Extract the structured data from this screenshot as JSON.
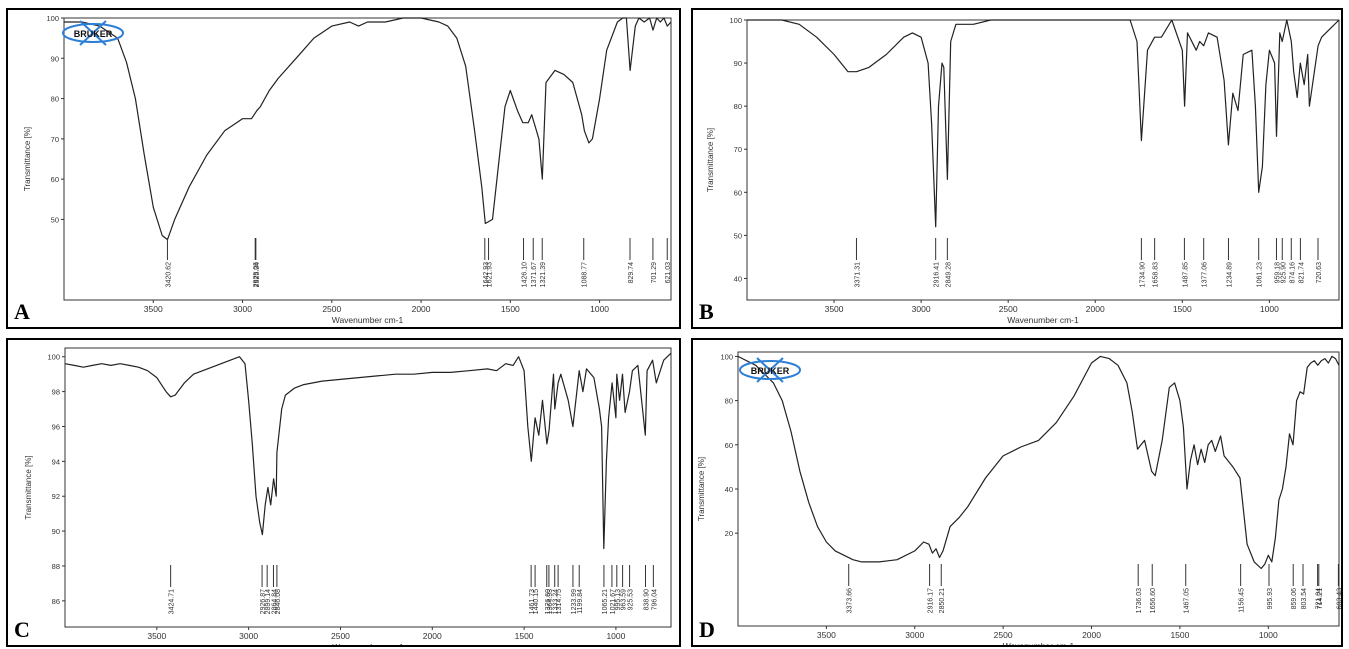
{
  "panels": [
    {
      "letter": "A",
      "logo_text": "BRUKER",
      "chart_data": {
        "type": "line",
        "xlabel": "Wavenumber cm-1",
        "ylabel": "Transmittance [%]",
        "xlim": [
          4000,
          600
        ],
        "ylim": [
          30,
          100
        ],
        "x_ticks": [
          3500,
          3000,
          2500,
          2000,
          1500,
          1000
        ],
        "y_ticks": [
          50,
          60,
          70,
          80,
          90,
          100
        ],
        "x": [
          4000,
          3900,
          3800,
          3700,
          3650,
          3600,
          3550,
          3500,
          3450,
          3420,
          3380,
          3300,
          3200,
          3100,
          3000,
          2950,
          2920,
          2900,
          2850,
          2800,
          2700,
          2600,
          2500,
          2400,
          2350,
          2300,
          2200,
          2100,
          2000,
          1900,
          1850,
          1800,
          1750,
          1700,
          1660,
          1640,
          1600,
          1560,
          1530,
          1500,
          1460,
          1430,
          1400,
          1380,
          1360,
          1340,
          1321,
          1300,
          1250,
          1200,
          1150,
          1100,
          1085,
          1060,
          1040,
          1000,
          960,
          900,
          870,
          850,
          829,
          800,
          780,
          750,
          720,
          701,
          680,
          660,
          640,
          621,
          600
        ],
        "y": [
          99,
          99,
          98,
          95,
          89,
          80,
          66,
          53,
          46,
          45,
          50,
          58,
          66,
          72,
          75,
          75,
          77,
          78,
          82,
          85,
          90,
          95,
          98,
          99,
          98,
          99,
          99,
          100,
          100,
          99,
          98,
          95,
          88,
          72,
          58,
          49,
          50,
          66,
          78,
          82,
          77,
          74,
          74,
          76,
          73,
          70,
          60,
          84,
          87,
          86,
          84,
          76,
          72,
          69,
          70,
          80,
          92,
          99,
          100,
          100,
          87,
          98,
          100,
          99,
          100,
          97,
          100,
          99,
          100,
          98,
          99
        ],
        "peak_labels": [
          "3420.62",
          "2925.34",
          "2929.06",
          "1621.93",
          "1642.93",
          "1426.10",
          "1371.67",
          "1321.39",
          "1088.77",
          "829.74",
          "701.29",
          "621.03"
        ]
      }
    },
    {
      "letter": "B",
      "chart_data": {
        "type": "line",
        "xlabel": "Wavenumber cm-1",
        "ylabel": "Transmittance [%]",
        "xlim": [
          4000,
          600
        ],
        "ylim": [
          35,
          100
        ],
        "x_ticks": [
          3500,
          3000,
          2500,
          2000,
          1500,
          1000
        ],
        "y_ticks": [
          40,
          50,
          60,
          70,
          80,
          90,
          100
        ],
        "x": [
          4000,
          3900,
          3800,
          3700,
          3600,
          3500,
          3420,
          3371,
          3300,
          3200,
          3100,
          3050,
          3000,
          2960,
          2940,
          2916,
          2900,
          2880,
          2870,
          2849,
          2830,
          2800,
          2700,
          2600,
          2400,
          2200,
          2000,
          1900,
          1800,
          1760,
          1735,
          1700,
          1659,
          1620,
          1560,
          1500,
          1487,
          1470,
          1420,
          1400,
          1377,
          1350,
          1300,
          1260,
          1235,
          1210,
          1180,
          1150,
          1100,
          1080,
          1061,
          1040,
          1020,
          1000,
          970,
          959,
          940,
          926,
          900,
          874,
          860,
          840,
          822,
          800,
          780,
          770,
          720,
          700,
          650,
          600
        ],
        "y": [
          100,
          100,
          100,
          99,
          96,
          92,
          88,
          88,
          89,
          92,
          96,
          97,
          96,
          90,
          76,
          52,
          80,
          90,
          89,
          63,
          95,
          99,
          99,
          100,
          100,
          100,
          100,
          100,
          100,
          95,
          72,
          93,
          96,
          96,
          100,
          93,
          80,
          97,
          93,
          95,
          94,
          97,
          96,
          86,
          71,
          83,
          79,
          92,
          93,
          80,
          60,
          66,
          85,
          93,
          90,
          73,
          97,
          95,
          100,
          95,
          88,
          82,
          90,
          85,
          92,
          80,
          94,
          96,
          98,
          100
        ],
        "peak_labels": [
          "3371.31",
          "2916.41",
          "2849.28",
          "1734.90",
          "1658.83",
          "1487.85",
          "1377.06",
          "1234.89",
          "1061.23",
          "959.18",
          "925.90",
          "874.16",
          "821.74",
          "720.63"
        ]
      }
    },
    {
      "letter": "C",
      "chart_data": {
        "type": "line",
        "xlabel": "Wavenumber cm-1",
        "ylabel": "Transmittance [%]",
        "xlim": [
          4000,
          700
        ],
        "ylim": [
          84.5,
          100.5
        ],
        "x_ticks": [
          3500,
          3000,
          2500,
          2000,
          1500,
          1000
        ],
        "y_ticks": [
          86,
          88,
          90,
          92,
          94,
          96,
          98,
          100
        ],
        "x": [
          4000,
          3950,
          3900,
          3850,
          3800,
          3750,
          3700,
          3650,
          3600,
          3550,
          3500,
          3450,
          3425,
          3400,
          3350,
          3300,
          3200,
          3100,
          3050,
          3020,
          3000,
          2980,
          2960,
          2940,
          2925,
          2910,
          2895,
          2880,
          2864,
          2850,
          2846,
          2820,
          2800,
          2750,
          2700,
          2600,
          2500,
          2400,
          2300,
          2200,
          2100,
          2000,
          1900,
          1800,
          1700,
          1650,
          1600,
          1560,
          1530,
          1500,
          1480,
          1461,
          1440,
          1420,
          1400,
          1376,
          1364,
          1340,
          1333,
          1315,
          1300,
          1260,
          1234,
          1200,
          1180,
          1160,
          1120,
          1090,
          1078,
          1066,
          1052,
          1040,
          1021,
          1000,
          995,
          980,
          964,
          950,
          926,
          910,
          880,
          840,
          830,
          800,
          780,
          740,
          720,
          700
        ],
        "y": [
          99.6,
          99.5,
          99.4,
          99.5,
          99.6,
          99.5,
          99.6,
          99.5,
          99.4,
          99.2,
          98.8,
          98.0,
          97.7,
          97.8,
          98.5,
          99.0,
          99.4,
          99.8,
          100.0,
          99.6,
          97.5,
          95.0,
          92.0,
          90.5,
          89.8,
          91.5,
          92.5,
          91.5,
          93.0,
          92.0,
          94.5,
          97.0,
          97.8,
          98.2,
          98.4,
          98.6,
          98.7,
          98.8,
          98.9,
          99.0,
          99.0,
          99.1,
          99.1,
          99.2,
          99.3,
          99.2,
          99.6,
          99.5,
          100.0,
          99.2,
          96.0,
          94.0,
          96.5,
          95.5,
          97.5,
          95.0,
          95.8,
          99.0,
          97.0,
          98.5,
          99.0,
          97.5,
          96.0,
          99.2,
          98.0,
          99.3,
          98.8,
          97.0,
          96.0,
          89.0,
          94.0,
          96.5,
          98.5,
          96.5,
          99.0,
          97.5,
          99.0,
          96.8,
          98.0,
          99.2,
          99.5,
          95.5,
          99.2,
          99.8,
          98.5,
          99.8,
          100.0,
          100.2
        ],
        "peak_labels": [
          "3424.71",
          "2926.87",
          "2899.14",
          "2864.84",
          "2846.08",
          "1461.73",
          "1440.15",
          "1376.60",
          "1364.93",
          "1333.24",
          "1314.75",
          "1233.99",
          "1199.84",
          "1065.21",
          "1021.67",
          "995.13",
          "963.59",
          "925.53",
          "838.90",
          "796.04"
        ]
      }
    },
    {
      "letter": "D",
      "logo_text": "BRUKER",
      "chart_data": {
        "type": "line",
        "xlabel": "Wavenumber cm-1",
        "ylabel": "Transmittance [%]",
        "xlim": [
          4000,
          600
        ],
        "ylim": [
          -22,
          102
        ],
        "x_ticks": [
          3500,
          3000,
          2500,
          2000,
          1500,
          1000
        ],
        "y_ticks": [
          20,
          40,
          60,
          80,
          100
        ],
        "x": [
          4000,
          3900,
          3800,
          3750,
          3700,
          3650,
          3600,
          3550,
          3500,
          3450,
          3400,
          3350,
          3300,
          3200,
          3100,
          3000,
          2950,
          2920,
          2900,
          2880,
          2860,
          2840,
          2800,
          2750,
          2700,
          2600,
          2500,
          2400,
          2300,
          2200,
          2100,
          2000,
          1950,
          1900,
          1850,
          1800,
          1770,
          1740,
          1720,
          1700,
          1660,
          1640,
          1600,
          1560,
          1530,
          1500,
          1480,
          1460,
          1440,
          1420,
          1400,
          1380,
          1360,
          1340,
          1320,
          1300,
          1270,
          1250,
          1200,
          1160,
          1120,
          1080,
          1040,
          1020,
          1000,
          980,
          960,
          940,
          920,
          900,
          880,
          860,
          840,
          820,
          800,
          780,
          760,
          740,
          720,
          700,
          680,
          660,
          640,
          620,
          600
        ],
        "y": [
          100,
          96,
          88,
          80,
          66,
          48,
          34,
          23,
          16,
          12,
          10,
          8,
          7,
          7,
          8,
          12,
          16,
          15,
          11,
          13,
          9,
          12,
          23,
          27,
          32,
          45,
          55,
          59,
          62,
          70,
          82,
          97,
          100,
          99,
          96,
          88,
          75,
          58,
          60,
          62,
          48,
          46,
          62,
          86,
          88,
          80,
          68,
          40,
          53,
          60,
          51,
          58,
          52,
          60,
          62,
          57,
          64,
          55,
          50,
          45,
          15,
          7,
          4,
          6,
          10,
          7,
          18,
          35,
          40,
          50,
          65,
          60,
          80,
          84,
          83,
          95,
          97,
          98,
          96,
          98,
          99,
          97,
          100,
          99,
          96
        ],
        "peak_labels": [
          "3373.66",
          "2916.17",
          "2850.21",
          "1736.03",
          "1656.60",
          "1467.05",
          "1156.45",
          "995.93",
          "859.06",
          "803.54",
          "721.04",
          "714.21",
          "603.43"
        ]
      }
    }
  ]
}
